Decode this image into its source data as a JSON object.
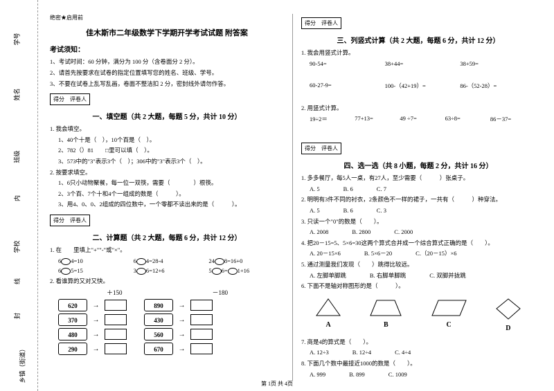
{
  "secret": "绝密★启用前",
  "title": "佳木斯市二年级数学下学期开学考试试题 附答案",
  "examNotice": "考试须知：",
  "rules": [
    "1、考试时间：60 分钟，满分为 100 分（含卷面分 2 分）。",
    "2、请首先按要求在试卷的指定位置填写您的姓名、班级、学号。",
    "3、不要在试卷上乱写乱画，卷面不整洁扣 2 分，密封线外请勿作答。"
  ],
  "scoreLabel": "得分",
  "reviewerLabel": "评卷人",
  "section1": {
    "title": "一、填空题（共 2 大题，每题 5 分，共计 10 分）",
    "q1": "1. 我会填空。",
    "q1items": [
      "1、40个十是（　），10个百是（　）。",
      "2、782（）81　　□里可以填（　）。",
      "3、573中的\"3\"表示3个（　）；306中的\"3\"表示3个（　）。"
    ],
    "q2": "2. 按要求填空。",
    "q2items": [
      "1、6只小动物聚餐，每一位一双筷，需要（　　　　）根筷。",
      "2、3个百、7个十和4个一组成的数是（　　　）。",
      "3、用4、0、0、2组成的四位数中，一个零都不读出来的是（　　　）。"
    ]
  },
  "section2": {
    "title": "二、计算题（共 2 大题，每题 6 分，共计 12 分）",
    "q1": "1. 在　　里填上\"+\"\"-\"或\"×\"。",
    "rows": [
      [
        "6　4=10",
        "6　4=28-4",
        "24　8=16+0"
      ],
      [
        "6　5=15",
        "3　6=12+6",
        "5　6=　1+16"
      ]
    ],
    "q2": "2. 看谁算的又对又快。",
    "flowOps": [
      "＋150",
      "－180"
    ],
    "flowLeft": [
      "620",
      "370",
      "480",
      "290"
    ],
    "flowMid": [
      "890",
      "430",
      "560",
      "670"
    ]
  },
  "section3": {
    "title": "三、列竖式计算（共 2 大题，每题 6 分，共计 12 分）",
    "q1": "1. 我会用竖式计算。",
    "q1rows": [
      [
        "90-54=",
        "38+44=",
        "38+59="
      ],
      [
        "60-27-9=",
        "100-（42+19）=",
        "86-（52-28）="
      ]
    ],
    "q2": "2. 用竖式计算。",
    "q2rows": [
      [
        "19÷2＝",
        "77+13=",
        "49 ÷7=",
        "63÷8=",
        "86－37="
      ]
    ]
  },
  "section4": {
    "title": "四、选一选（共 8 小题，每题 2 分，共计 16 分）",
    "items": [
      {
        "q": "1. 多多餐厅，每5人一桌，有27人，至少需要（　　　）张桌子。",
        "opts": [
          "A. 5",
          "B. 6",
          "C. 7"
        ]
      },
      {
        "q": "2. 明明有3件不同的衬衣，2条颜色不一样的裙子，一共有（　　　）种穿法。",
        "opts": [
          "A. 5",
          "B. 6",
          "C. 3"
        ]
      },
      {
        "q": "3. 只读一个\"0\"的数是（　　）。",
        "opts": [
          "A. 2008",
          "B. 2800",
          "C. 2000"
        ]
      },
      {
        "q": "4. 把20－15=5、5×6=30这两个算式合并成一个综合算式正确的是（　　）。",
        "opts": [
          "A. 20－15×6",
          "B. 5×6－20",
          "C.（20－15）×6"
        ]
      },
      {
        "q": "5. 通过测量我们发现（　　）跳得比较远。",
        "opts": [
          "A. 左脚单脚跳",
          "B. 右脚单脚跳",
          "C. 双脚并拢跳"
        ]
      },
      {
        "q": "6. 下面不是轴对称图形的是（　　　）。"
      },
      {
        "q": "7. 商是4的算式是（　　）。",
        "opts": [
          "A. 12÷3",
          "B. 12÷4",
          "C. 4÷4"
        ]
      },
      {
        "q": "8. 下面几个数中最接近1000的数是（　　）。",
        "opts": [
          "A. 999",
          "B. 899",
          "C. 1009"
        ]
      }
    ]
  },
  "shapeLabels": [
    "A",
    "B",
    "C",
    "D"
  ],
  "margins": {
    "xuehao": "学号",
    "xingming": "姓名",
    "banji": "班级",
    "nei": "内",
    "xuexiao": "学校",
    "xian": "线",
    "feng": "封",
    "xiangzhen": "乡镇（街道）"
  },
  "footer": "第 1页 共 4页"
}
